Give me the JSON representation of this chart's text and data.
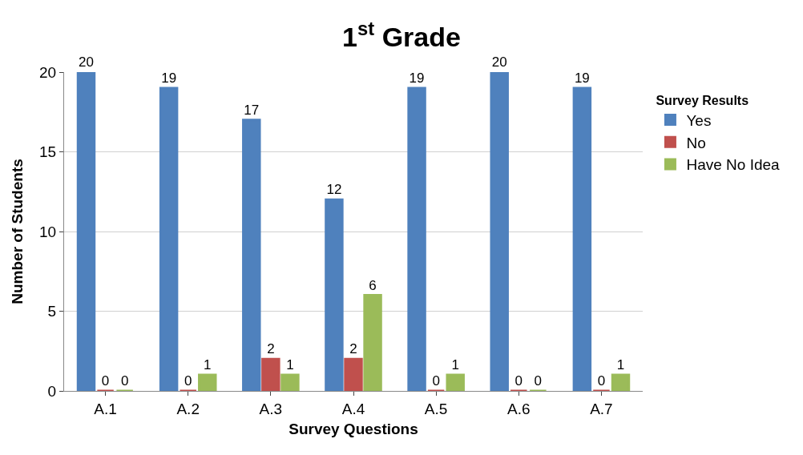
{
  "chart_data": {
    "type": "bar",
    "title": "1$^{st}$ Grade",
    "xlabel": "Survey Questions",
    "ylabel": "Number of Students",
    "legend_title": "Survey Results",
    "categories": [
      "A.1",
      "A.2",
      "A.3",
      "A.4",
      "A.5",
      "A.6",
      "A.7"
    ],
    "series": [
      {
        "name": "Yes",
        "color": "#4f81bd",
        "values": [
          20,
          19,
          17,
          12,
          19,
          20,
          19
        ]
      },
      {
        "name": "No",
        "color": "#c0504d",
        "values": [
          0,
          0,
          2,
          2,
          0,
          0,
          0
        ]
      },
      {
        "name": "Have No Idea",
        "color": "#9bbb59",
        "values": [
          0,
          1,
          1,
          6,
          1,
          0,
          1
        ]
      }
    ],
    "ylim": [
      0,
      20
    ],
    "yticks": [
      0,
      5,
      10,
      15,
      20
    ],
    "grid": "y",
    "legend": "right",
    "data_labels": true
  }
}
